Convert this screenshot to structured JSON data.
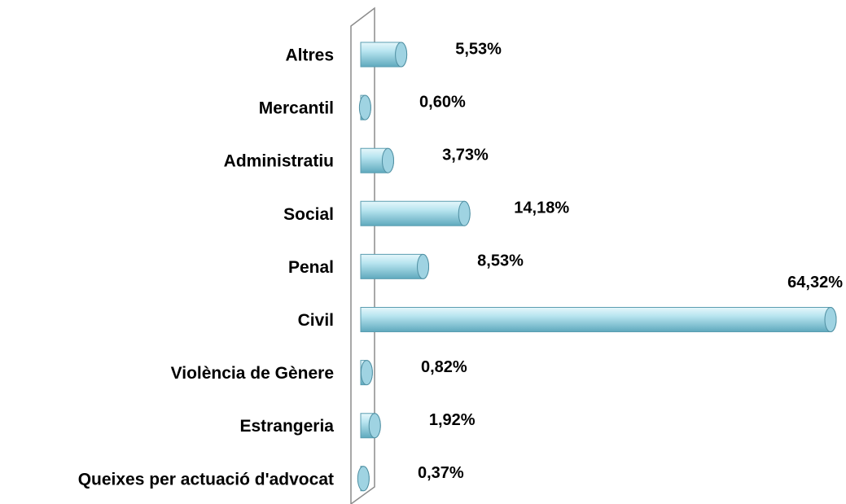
{
  "chart_data": {
    "type": "bar",
    "orientation": "horizontal",
    "categories": [
      "Altres",
      "Mercantil",
      "Administratiu",
      "Social",
      "Penal",
      "Civil",
      "Violència de Gènere",
      "Estrangeria",
      "Queixes per actuació d'advocat"
    ],
    "values": [
      5.53,
      0.6,
      3.73,
      14.18,
      8.53,
      64.32,
      0.82,
      1.92,
      0.37
    ],
    "value_labels": [
      "5,53%",
      "0,60%",
      "3,73%",
      "14,18%",
      "8,53%",
      "64,32%",
      "0,82%",
      "1,92%",
      "0,37%"
    ],
    "color": "#a8dcea"
  }
}
